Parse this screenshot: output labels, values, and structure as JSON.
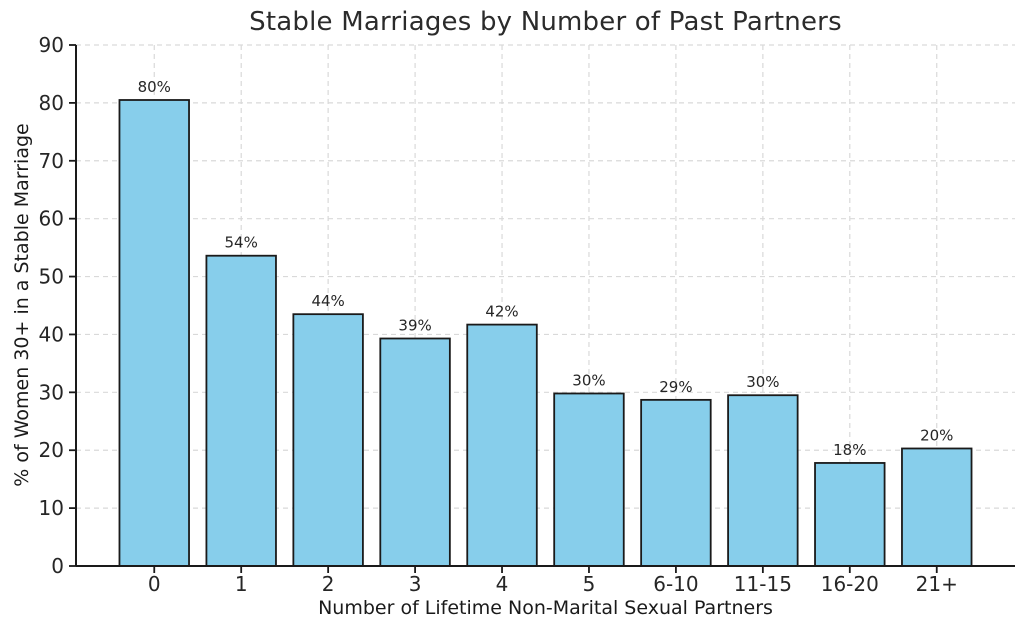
{
  "chart_data": {
    "type": "bar",
    "title": "Stable Marriages by Number of Past Partners",
    "xlabel": "Number of Lifetime Non-Marital Sexual Partners",
    "ylabel": "% of Women 30+ in a Stable Marriage",
    "categories": [
      "0",
      "1",
      "2",
      "3",
      "4",
      "5",
      "6-10",
      "11-15",
      "16-20",
      "21+"
    ],
    "values": [
      80.5,
      53.6,
      43.5,
      39.3,
      41.7,
      29.8,
      28.7,
      29.5,
      17.8,
      20.3
    ],
    "bar_labels": [
      "80%",
      "54%",
      "44%",
      "39%",
      "42%",
      "30%",
      "29%",
      "30%",
      "18%",
      "20%"
    ],
    "ylim": [
      0,
      90
    ],
    "yticks": [
      0,
      10,
      20,
      30,
      40,
      50,
      60,
      70,
      80,
      90
    ],
    "grid": {
      "visible": true,
      "axis": "both",
      "line_style": "dashed"
    },
    "colors": {
      "bar_fill": "#87CEEB",
      "bar_edge": "#1a1a1a",
      "grid": "#d9d9d9",
      "axis": "#1a1a1a",
      "text": "#262626",
      "background": "#ffffff"
    }
  }
}
